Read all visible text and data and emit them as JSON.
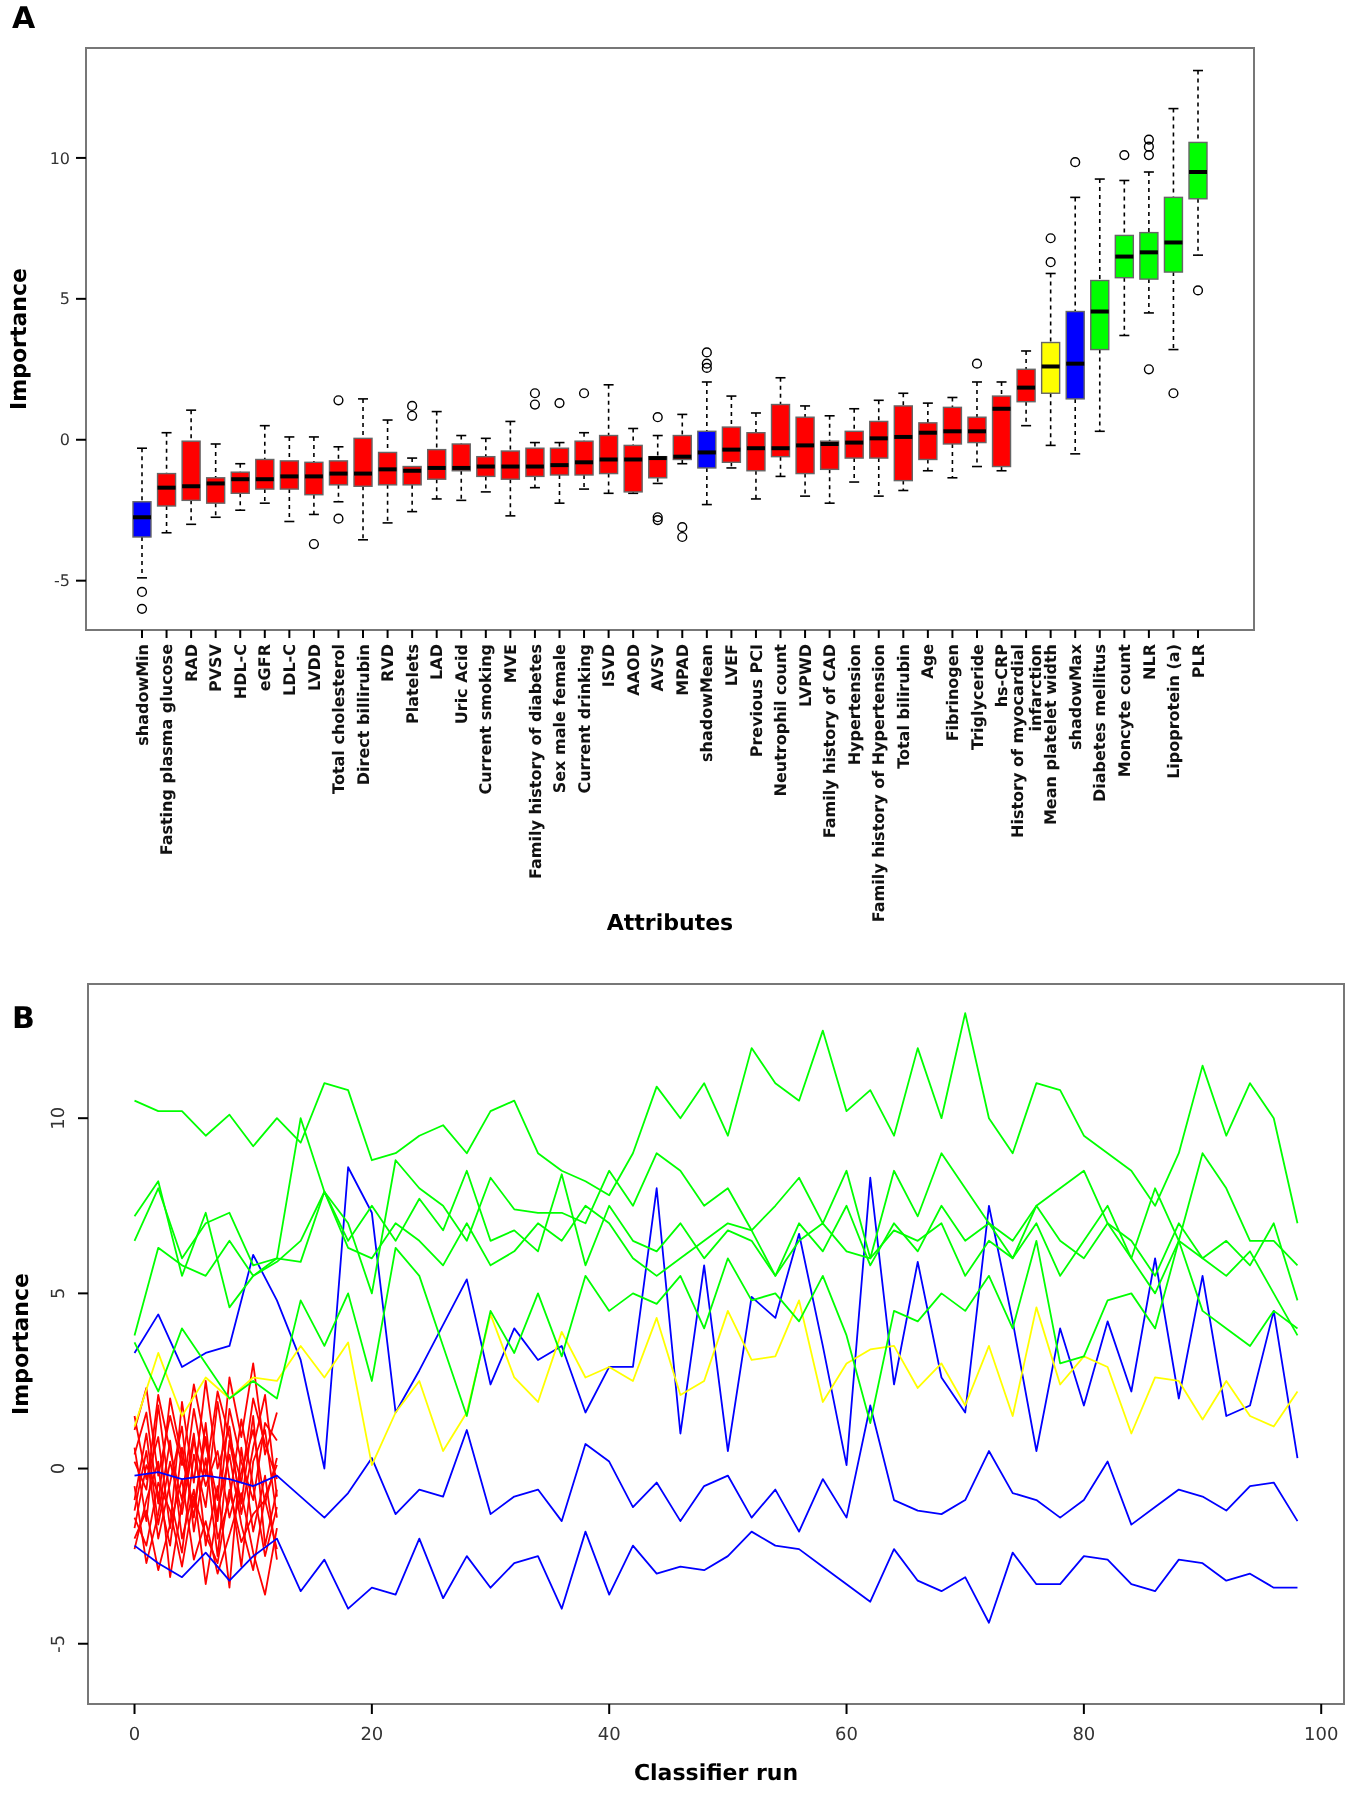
{
  "chart_data": [
    {
      "type": "box",
      "annotations": [
        "A"
      ],
      "xlabel": "Attributes",
      "ylabel": "Importance",
      "ylim": [
        -6.75,
        13.9
      ],
      "yticks": [
        -5,
        0,
        5,
        10
      ],
      "categories": [
        "shadowMin",
        "Fasting plasma glucose",
        "RAD",
        "PVSV",
        "HDL-C",
        "eGFR",
        "LDL-C",
        "LVDD",
        "Total cholesterol",
        "Direct billirubin",
        "RVD",
        "Platelets",
        "LAD",
        "Uric Acid",
        "Current smoking",
        "MVE",
        "Family history of diabetes",
        "Sex male female",
        "Current drinking",
        "ISVD",
        "AAOD",
        "AVSV",
        "MPAD",
        "shadowMean",
        "LVEF",
        "Previous PCI",
        "Neutrophil count",
        "LVPWD",
        "Family history of CAD",
        "Hypertension",
        "Family history of Hypertension",
        "Total bilirubin",
        "Age",
        "Fibrinogen",
        "Triglyceride",
        "hs-CRP",
        "History of myocardial\ninfarction",
        "Mean platelet width",
        "shadowMax",
        "Diabetes mellitus",
        "Moncyte count",
        "NLR",
        "Lipoprotein (a)",
        "PLR"
      ],
      "colors": [
        "#0000ff",
        "#ff0000",
        "#ff0000",
        "#ff0000",
        "#ff0000",
        "#ff0000",
        "#ff0000",
        "#ff0000",
        "#ff0000",
        "#ff0000",
        "#ff0000",
        "#ff0000",
        "#ff0000",
        "#ff0000",
        "#ff0000",
        "#ff0000",
        "#ff0000",
        "#ff0000",
        "#ff0000",
        "#ff0000",
        "#ff0000",
        "#ff0000",
        "#ff0000",
        "#0000ff",
        "#ff0000",
        "#ff0000",
        "#ff0000",
        "#ff0000",
        "#ff0000",
        "#ff0000",
        "#ff0000",
        "#ff0000",
        "#ff0000",
        "#ff0000",
        "#ff0000",
        "#ff0000",
        "#ff0000",
        "#ffff00",
        "#0000ff",
        "#00ff00",
        "#00ff00",
        "#00ff00",
        "#00ff00",
        "#00ff00"
      ],
      "boxes": [
        {
          "low": -4.9,
          "q1": -3.45,
          "median": -2.75,
          "q3": -2.2,
          "high": -0.3,
          "outliers": [
            -5.4,
            -6.0
          ]
        },
        {
          "low": -3.3,
          "q1": -2.35,
          "median": -1.7,
          "q3": -1.2,
          "high": 0.25
        },
        {
          "low": -3.0,
          "q1": -2.15,
          "median": -1.65,
          "q3": -0.05,
          "high": 1.05
        },
        {
          "low": -2.75,
          "q1": -2.25,
          "median": -1.55,
          "q3": -1.35,
          "high": -0.15
        },
        {
          "low": -2.5,
          "q1": -1.9,
          "median": -1.4,
          "q3": -1.15,
          "high": -0.85
        },
        {
          "low": -2.25,
          "q1": -1.75,
          "median": -1.4,
          "q3": -0.7,
          "high": 0.5
        },
        {
          "low": -2.9,
          "q1": -1.75,
          "median": -1.3,
          "q3": -0.75,
          "high": 0.1
        },
        {
          "low": -2.65,
          "q1": -1.95,
          "median": -1.3,
          "q3": -0.8,
          "high": 0.1,
          "outliers": [
            -3.7
          ]
        },
        {
          "low": -2.2,
          "q1": -1.6,
          "median": -1.2,
          "q3": -0.75,
          "high": -0.25,
          "outliers": [
            1.4,
            -2.8
          ]
        },
        {
          "low": -3.55,
          "q1": -1.65,
          "median": -1.2,
          "q3": 0.05,
          "high": 1.45
        },
        {
          "low": -2.95,
          "q1": -1.6,
          "median": -1.05,
          "q3": -0.45,
          "high": 0.7
        },
        {
          "low": -2.55,
          "q1": -1.6,
          "median": -1.1,
          "q3": -0.95,
          "high": -0.65,
          "outliers": [
            1.2,
            0.85
          ]
        },
        {
          "low": -2.1,
          "q1": -1.4,
          "median": -1.0,
          "q3": -0.35,
          "high": 1.0
        },
        {
          "low": -2.15,
          "q1": -1.1,
          "median": -1.0,
          "q3": -0.15,
          "high": 0.15
        },
        {
          "low": -1.85,
          "q1": -1.3,
          "median": -0.95,
          "q3": -0.6,
          "high": 0.05
        },
        {
          "low": -2.7,
          "q1": -1.4,
          "median": -0.95,
          "q3": -0.4,
          "high": 0.65
        },
        {
          "low": -1.7,
          "q1": -1.3,
          "median": -0.95,
          "q3": -0.3,
          "high": -0.1,
          "outliers": [
            1.65,
            1.25
          ]
        },
        {
          "low": -2.25,
          "q1": -1.25,
          "median": -0.9,
          "q3": -0.3,
          "high": -0.1,
          "outliers": [
            1.3
          ]
        },
        {
          "low": -1.75,
          "q1": -1.25,
          "median": -0.8,
          "q3": -0.05,
          "high": 0.25,
          "outliers": [
            1.65
          ]
        },
        {
          "low": -1.9,
          "q1": -1.2,
          "median": -0.7,
          "q3": 0.15,
          "high": 1.95
        },
        {
          "low": -1.9,
          "q1": -1.85,
          "median": -0.7,
          "q3": -0.2,
          "high": 0.4
        },
        {
          "low": -1.55,
          "q1": -1.35,
          "median": -0.65,
          "q3": -0.6,
          "high": 0.15,
          "outliers": [
            0.8,
            -2.75,
            -2.85
          ]
        },
        {
          "low": -0.85,
          "q1": -0.7,
          "median": -0.6,
          "q3": 0.15,
          "high": 0.9,
          "outliers": [
            -3.1,
            -3.45
          ]
        },
        {
          "low": -2.3,
          "q1": -1.0,
          "median": -0.45,
          "q3": 0.3,
          "high": 2.05,
          "outliers": [
            3.1,
            2.7,
            2.55
          ]
        },
        {
          "low": -1.0,
          "q1": -0.8,
          "median": -0.35,
          "q3": 0.45,
          "high": 1.55
        },
        {
          "low": -2.1,
          "q1": -1.1,
          "median": -0.3,
          "q3": 0.25,
          "high": 0.95
        },
        {
          "low": -1.3,
          "q1": -0.6,
          "median": -0.3,
          "q3": 1.25,
          "high": 2.2
        },
        {
          "low": -2.0,
          "q1": -1.2,
          "median": -0.2,
          "q3": 0.8,
          "high": 1.2
        },
        {
          "low": -2.25,
          "q1": -1.05,
          "median": -0.15,
          "q3": -0.05,
          "high": 0.85
        },
        {
          "low": -1.5,
          "q1": -0.65,
          "median": -0.1,
          "q3": 0.3,
          "high": 1.1
        },
        {
          "low": -2.0,
          "q1": -0.65,
          "median": 0.05,
          "q3": 0.65,
          "high": 1.4
        },
        {
          "low": -1.8,
          "q1": -1.45,
          "median": 0.1,
          "q3": 1.2,
          "high": 1.65
        },
        {
          "low": -1.1,
          "q1": -0.7,
          "median": 0.25,
          "q3": 0.6,
          "high": 1.3
        },
        {
          "low": -1.35,
          "q1": -0.15,
          "median": 0.3,
          "q3": 1.15,
          "high": 1.5
        },
        {
          "low": -0.95,
          "q1": -0.1,
          "median": 0.3,
          "q3": 0.8,
          "high": 2.05,
          "outliers": [
            2.7
          ]
        },
        {
          "low": -1.1,
          "q1": -0.95,
          "median": 1.1,
          "q3": 1.55,
          "high": 2.05
        },
        {
          "low": 0.5,
          "q1": 1.35,
          "median": 1.85,
          "q3": 2.5,
          "high": 3.15
        },
        {
          "low": -0.2,
          "q1": 1.65,
          "median": 2.6,
          "q3": 3.45,
          "high": 5.9,
          "outliers": [
            7.15,
            6.3
          ]
        },
        {
          "low": -0.5,
          "q1": 1.45,
          "median": 2.7,
          "q3": 4.55,
          "high": 8.6,
          "outliers": [
            9.85
          ]
        },
        {
          "low": 0.3,
          "q1": 3.2,
          "median": 4.55,
          "q3": 5.65,
          "high": 9.25
        },
        {
          "low": 3.7,
          "q1": 5.75,
          "median": 6.5,
          "q3": 7.25,
          "high": 9.2,
          "outliers": [
            10.1
          ]
        },
        {
          "low": 4.5,
          "q1": 5.7,
          "median": 6.65,
          "q3": 7.35,
          "high": 9.5,
          "outliers": [
            10.65,
            10.4,
            10.1,
            2.5
          ]
        },
        {
          "low": 3.2,
          "q1": 5.95,
          "median": 7.0,
          "q3": 8.6,
          "high": 11.75,
          "outliers": [
            1.65
          ]
        },
        {
          "low": 6.55,
          "q1": 8.55,
          "median": 9.5,
          "q3": 10.55,
          "high": 13.1,
          "outliers": [
            5.3
          ]
        }
      ]
    },
    {
      "type": "line",
      "annotations": [
        "B"
      ],
      "xlabel": "Classifier run",
      "ylabel": "Importance",
      "xlim": [
        -3.92,
        101.92
      ],
      "xticks": [
        0,
        20,
        40,
        60,
        80,
        100
      ],
      "ylim": [
        -6.72,
        13.83
      ],
      "yticks": [
        -5,
        0,
        5,
        10
      ],
      "x": [
        0,
        2,
        4,
        6,
        8,
        10,
        12,
        14,
        16,
        18,
        20,
        22,
        24,
        26,
        28,
        30,
        32,
        34,
        36,
        38,
        40,
        42,
        44,
        46,
        48,
        50,
        52,
        54,
        56,
        58,
        60,
        62,
        64,
        66,
        68,
        70,
        72,
        74,
        76,
        78,
        80,
        82,
        84,
        86,
        88,
        90,
        92,
        94,
        96,
        98
      ],
      "series": [
        {
          "color": "#ff0000",
          "x": [
            0,
            1,
            2,
            3,
            4,
            5,
            6,
            7,
            8,
            9,
            10,
            11,
            12
          ],
          "values": [
            -1.2,
            0.5,
            -2.0,
            -0.4,
            1.2,
            -1.8,
            0.3,
            -2.5,
            0.8,
            -1.0,
            1.5,
            -2.2,
            -0.6
          ]
        },
        {
          "color": "#ff0000",
          "x": [
            0,
            1,
            2,
            3,
            4,
            5,
            6,
            7,
            8,
            9,
            10,
            11,
            12
          ],
          "values": [
            0.6,
            -1.5,
            1.8,
            -0.8,
            -2.4,
            0.4,
            -1.1,
            1.9,
            -0.3,
            -2.8,
            0.2,
            1.1,
            -1.4
          ]
        },
        {
          "color": "#ff0000",
          "x": [
            0,
            1,
            2,
            3,
            4,
            5,
            6,
            7,
            8,
            9,
            10,
            11,
            12
          ],
          "values": [
            -2.3,
            -0.9,
            0.2,
            -3.1,
            -1.0,
            1.0,
            -2.2,
            -0.5,
            -3.4,
            0.6,
            -1.8,
            -0.2,
            -2.6
          ]
        },
        {
          "color": "#ff0000",
          "x": [
            0,
            1,
            2,
            3,
            4,
            5,
            6,
            7,
            8,
            9,
            10,
            11,
            12
          ],
          "values": [
            1.1,
            2.3,
            -0.2,
            1.5,
            0.1,
            2.4,
            0.7,
            -0.9,
            2.6,
            0.9,
            3.0,
            0.4,
            1.6
          ]
        },
        {
          "color": "#ff0000",
          "x": [
            0,
            1,
            2,
            3,
            4,
            5,
            6,
            7,
            8,
            9,
            10,
            11,
            12
          ],
          "values": [
            -0.5,
            -2.7,
            -1.3,
            0.8,
            -2.0,
            -0.6,
            -3.3,
            -1.2,
            0.4,
            -1.6,
            -2.9,
            -0.8,
            0.1
          ]
        },
        {
          "color": "#ff0000",
          "x": [
            0,
            1,
            2,
            3,
            4,
            5,
            6,
            7,
            8,
            9,
            10,
            11,
            12
          ],
          "values": [
            -1.7,
            0.1,
            -0.7,
            -2.2,
            0.6,
            -1.4,
            1.3,
            -2.0,
            -0.9,
            1.4,
            -0.5,
            -2.5,
            -1.1
          ]
        },
        {
          "color": "#ff0000",
          "x": [
            0,
            1,
            2,
            3,
            4,
            5,
            6,
            7,
            8,
            9,
            10,
            11,
            12
          ],
          "values": [
            0.2,
            -0.6,
            2.1,
            0.5,
            -0.9,
            1.7,
            -0.2,
            2.2,
            0.9,
            -0.4,
            2.0,
            0.7,
            -0.3
          ]
        },
        {
          "color": "#ff0000",
          "x": [
            0,
            1,
            2,
            3,
            4,
            5,
            6,
            7,
            8,
            9,
            10,
            11,
            12
          ],
          "values": [
            -2.0,
            -1.2,
            -2.9,
            -1.6,
            -0.3,
            -2.6,
            -1.5,
            -3.0,
            -1.9,
            -0.7,
            -2.4,
            -3.6,
            -1.7
          ]
        },
        {
          "color": "#ff0000",
          "x": [
            0,
            1,
            2,
            3,
            4,
            5,
            6,
            7,
            8,
            9,
            10,
            11,
            12
          ],
          "values": [
            -0.9,
            1.0,
            -1.6,
            0.2,
            -1.3,
            0.8,
            -0.5,
            0.5,
            -1.4,
            -0.1,
            1.1,
            -1.0,
            0.3
          ]
        },
        {
          "color": "#ff0000",
          "x": [
            0,
            1,
            2,
            3,
            4,
            5,
            6,
            7,
            8,
            9,
            10,
            11,
            12
          ],
          "values": [
            1.5,
            -0.3,
            0.9,
            -1.7,
            1.9,
            -0.4,
            2.5,
            0.0,
            1.2,
            -1.3,
            0.6,
            2.1,
            -0.8
          ]
        },
        {
          "color": "#ff0000",
          "x": [
            0,
            1,
            2,
            3,
            4,
            5,
            6,
            7,
            8,
            9,
            10,
            11,
            12
          ],
          "values": [
            -1.4,
            -2.2,
            -0.4,
            -1.2,
            -2.8,
            -0.8,
            -1.9,
            -2.7,
            -0.6,
            -2.1,
            -1.3,
            -0.9,
            -2.3
          ]
        },
        {
          "color": "#ff0000",
          "x": [
            0,
            1,
            2,
            3,
            4,
            5,
            6,
            7,
            8,
            9,
            10,
            11,
            12
          ],
          "values": [
            0.4,
            1.6,
            -1.0,
            2.0,
            0.3,
            -1.1,
            0.9,
            -1.5,
            1.7,
            0.2,
            -0.9,
            1.3,
            0.8
          ]
        },
        {
          "color": "#0000ff",
          "values": [
            3.3,
            4.4,
            2.9,
            3.3,
            3.5,
            6.1,
            4.8,
            3.1,
            0.0,
            8.6,
            7.3,
            1.6,
            2.8,
            4.1,
            5.4,
            2.4,
            4.0,
            3.1,
            3.5,
            1.6,
            2.9,
            2.9,
            8.0,
            1.0,
            5.8,
            0.5,
            4.9,
            4.3,
            6.7,
            3.5,
            0.1,
            8.3,
            2.4,
            5.9,
            2.6,
            1.6,
            7.5,
            4.2,
            0.5,
            4.0,
            1.8,
            4.2,
            2.2,
            6.0,
            2.0,
            5.5,
            1.5,
            1.8,
            4.5,
            0.3
          ]
        },
        {
          "color": "#0000ff",
          "values": [
            -0.2,
            -0.1,
            -0.3,
            -0.2,
            -0.3,
            -0.5,
            -0.2,
            -0.8,
            -1.4,
            -0.7,
            0.3,
            -1.3,
            -0.6,
            -0.8,
            1.1,
            -1.3,
            -0.8,
            -0.6,
            -1.5,
            0.7,
            0.2,
            -1.1,
            -0.4,
            -1.5,
            -0.5,
            -0.2,
            -1.4,
            -0.6,
            -1.8,
            -0.3,
            -1.4,
            1.8,
            -0.9,
            -1.2,
            -1.3,
            -0.9,
            0.5,
            -0.7,
            -0.9,
            -1.4,
            -0.9,
            0.2,
            -1.6,
            -1.1,
            -0.6,
            -0.8,
            -1.2,
            -0.5,
            -0.4,
            -1.5
          ]
        },
        {
          "color": "#0000ff",
          "values": [
            -2.2,
            -2.7,
            -3.1,
            -2.4,
            -3.2,
            -2.5,
            -2.0,
            -3.5,
            -2.6,
            -4.0,
            -3.4,
            -3.6,
            -2.0,
            -3.7,
            -2.5,
            -3.4,
            -2.7,
            -2.5,
            -4.0,
            -1.8,
            -3.6,
            -2.2,
            -3.0,
            -2.8,
            -2.9,
            -2.5,
            -1.8,
            -2.2,
            -2.3,
            -2.8,
            -3.3,
            -3.8,
            -2.3,
            -3.2,
            -3.5,
            -3.1,
            -4.4,
            -2.4,
            -3.3,
            -3.3,
            -2.5,
            -2.6,
            -3.3,
            -3.5,
            -2.6,
            -2.7,
            -3.2,
            -3.0,
            -3.4,
            -3.4
          ]
        },
        {
          "color": "#ffff00",
          "values": [
            1.2,
            3.3,
            1.5,
            2.6,
            2.0,
            2.6,
            2.5,
            3.5,
            2.6,
            3.6,
            0.1,
            1.6,
            2.5,
            0.5,
            1.6,
            4.4,
            2.6,
            1.9,
            3.9,
            2.6,
            2.9,
            2.5,
            4.3,
            2.1,
            2.5,
            4.5,
            3.1,
            3.2,
            4.8,
            1.9,
            3.0,
            3.4,
            3.5,
            2.3,
            3.0,
            1.8,
            3.5,
            1.5,
            4.6,
            2.4,
            3.2,
            2.9,
            1.0,
            2.6,
            2.5,
            1.4,
            2.5,
            1.5,
            1.2,
            2.2
          ]
        },
        {
          "color": "#00ff00",
          "values": [
            10.5,
            10.2,
            10.2,
            9.5,
            10.1,
            9.2,
            10.0,
            9.3,
            11.0,
            10.8,
            8.8,
            9.0,
            9.5,
            9.8,
            9.0,
            10.2,
            10.5,
            9.0,
            8.5,
            8.2,
            7.8,
            9.0,
            10.9,
            10.0,
            11.0,
            9.5,
            12.0,
            11.0,
            10.5,
            12.5,
            10.2,
            10.8,
            9.5,
            12.0,
            10.0,
            13.0,
            10.0,
            9.0,
            11.0,
            10.8,
            9.5,
            9.0,
            8.5,
            7.5,
            9.0,
            11.5,
            9.5,
            11.0,
            10.0,
            7.0
          ]
        },
        {
          "color": "#00ff00",
          "values": [
            6.5,
            8.0,
            6.0,
            7.0,
            7.3,
            5.8,
            6.0,
            10.0,
            7.9,
            7.0,
            5.0,
            8.8,
            8.0,
            7.5,
            6.5,
            8.3,
            7.4,
            7.3,
            7.3,
            7.0,
            8.5,
            7.5,
            9.0,
            8.5,
            7.5,
            8.0,
            6.8,
            7.5,
            8.3,
            7.0,
            8.5,
            6.0,
            8.5,
            7.2,
            9.0,
            8.0,
            7.0,
            6.5,
            7.5,
            8.0,
            8.5,
            7.0,
            6.0,
            8.0,
            6.5,
            9.0,
            8.0,
            6.5,
            6.5,
            5.8
          ]
        },
        {
          "color": "#00ff00",
          "values": [
            7.2,
            8.2,
            5.5,
            7.3,
            4.6,
            5.5,
            5.9,
            6.5,
            7.9,
            6.5,
            7.5,
            6.5,
            7.7,
            6.8,
            8.5,
            6.5,
            6.8,
            6.2,
            8.4,
            5.8,
            7.5,
            6.5,
            6.2,
            7.0,
            6.0,
            6.8,
            6.5,
            5.5,
            7.0,
            6.2,
            7.5,
            5.8,
            7.0,
            6.2,
            7.5,
            6.5,
            7.0,
            6.0,
            7.5,
            6.5,
            6.0,
            7.0,
            6.5,
            5.5,
            7.0,
            6.0,
            6.5,
            5.8,
            7.0,
            4.8
          ]
        },
        {
          "color": "#00ff00",
          "values": [
            3.8,
            6.3,
            5.8,
            5.5,
            6.5,
            5.5,
            6.0,
            5.9,
            7.9,
            6.3,
            6.0,
            7.0,
            6.5,
            5.8,
            7.0,
            5.8,
            6.2,
            7.0,
            6.5,
            7.5,
            7.0,
            6.0,
            5.5,
            6.0,
            6.5,
            7.0,
            6.8,
            5.5,
            6.5,
            7.0,
            6.2,
            6.0,
            6.8,
            6.5,
            7.0,
            5.5,
            6.5,
            6.0,
            7.0,
            5.5,
            6.5,
            7.5,
            6.0,
            5.0,
            6.5,
            6.0,
            5.5,
            6.2,
            5.0,
            3.8
          ]
        },
        {
          "color": "#00ff00",
          "values": [
            3.6,
            2.2,
            4.0,
            3.0,
            2.0,
            2.5,
            2.0,
            4.8,
            3.5,
            5.0,
            2.5,
            6.3,
            5.5,
            3.5,
            1.5,
            4.5,
            3.3,
            5.0,
            3.2,
            5.5,
            4.5,
            5.0,
            4.7,
            5.5,
            4.0,
            6.0,
            4.8,
            5.0,
            4.2,
            5.5,
            3.8,
            1.3,
            4.5,
            4.2,
            5.0,
            4.5,
            5.5,
            4.0,
            6.5,
            3.0,
            3.2,
            4.8,
            5.0,
            4.0,
            6.5,
            4.5,
            4.0,
            3.5,
            4.5,
            4.0
          ]
        }
      ]
    }
  ]
}
